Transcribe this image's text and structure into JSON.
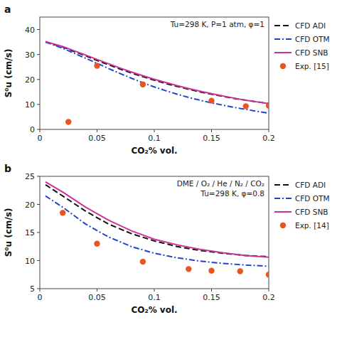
{
  "chart_data": [
    {
      "type": "line",
      "title": "Tu=298 K, P=1 atm, φ=1",
      "x_label": "CO₂% vol.",
      "y_label": "S⁰u (cm/s)",
      "annotations": [
        "a"
      ],
      "xlim": [
        0,
        0.2
      ],
      "ylim": [
        0,
        45
      ],
      "xticks": [
        0,
        0.05,
        0.1,
        0.15,
        0.2
      ],
      "yticks": [
        0,
        10,
        20,
        30,
        40
      ],
      "grid": false,
      "legend": "right",
      "series": [
        {
          "name": "CFD ADI",
          "color": "#111111",
          "line_style": "dashed",
          "x": [
            0.005,
            0.02,
            0.03,
            0.04,
            0.05,
            0.06,
            0.07,
            0.08,
            0.09,
            0.1,
            0.11,
            0.12,
            0.13,
            0.14,
            0.15,
            0.16,
            0.17,
            0.18,
            0.19,
            0.2
          ],
          "values": [
            35.0,
            33.0,
            31.2,
            29.5,
            27.6,
            25.9,
            24.2,
            22.6,
            21.1,
            19.7,
            18.4,
            17.2,
            16.1,
            15.0,
            14.1,
            13.2,
            12.4,
            11.7,
            11.0,
            10.4
          ]
        },
        {
          "name": "CFD OTM",
          "color": "#2244cc",
          "line_style": "dashdot",
          "x": [
            0.005,
            0.02,
            0.03,
            0.04,
            0.05,
            0.06,
            0.07,
            0.08,
            0.09,
            0.1,
            0.11,
            0.12,
            0.13,
            0.14,
            0.15,
            0.16,
            0.17,
            0.18,
            0.19,
            0.2
          ],
          "values": [
            35.0,
            32.5,
            30.5,
            28.5,
            26.5,
            24.4,
            22.4,
            20.5,
            18.7,
            17.0,
            15.5,
            14.1,
            12.8,
            11.7,
            10.6,
            9.7,
            8.8,
            8.0,
            7.2,
            6.5
          ]
        },
        {
          "name": "CFD SNB",
          "color": "#cc3399",
          "line_style": "solid",
          "x": [
            0.005,
            0.02,
            0.03,
            0.04,
            0.05,
            0.06,
            0.07,
            0.08,
            0.09,
            0.1,
            0.11,
            0.12,
            0.13,
            0.14,
            0.15,
            0.16,
            0.17,
            0.18,
            0.19,
            0.2
          ],
          "values": [
            35.2,
            33.2,
            31.5,
            29.8,
            28.0,
            26.3,
            24.6,
            23.0,
            21.5,
            20.1,
            18.8,
            17.5,
            16.4,
            15.3,
            14.3,
            13.4,
            12.5,
            11.7,
            11.0,
            10.3
          ]
        },
        {
          "name": "Exp. [15]",
          "type": "scatter",
          "color": "#e85520",
          "marker": "circle",
          "x": [
            0.025,
            0.05,
            0.09,
            0.15,
            0.18,
            0.2
          ],
          "values": [
            3.0,
            25.5,
            18.0,
            11.5,
            9.3,
            9.5
          ]
        }
      ]
    },
    {
      "type": "line",
      "title": "DME / O₂ / He / N₂ / CO₂\nTu=298 K, φ=0.8",
      "x_label": "CO₂% vol.",
      "y_label": "S⁰u (cm/s)",
      "annotations": [
        "b"
      ],
      "xlim": [
        0,
        0.2
      ],
      "ylim": [
        5,
        25
      ],
      "xticks": [
        0,
        0.05,
        0.1,
        0.15,
        0.2
      ],
      "yticks": [
        5,
        10,
        15,
        20,
        25
      ],
      "grid": false,
      "legend": "right",
      "series": [
        {
          "name": "CFD ADI",
          "color": "#111111",
          "line_style": "dashed",
          "x": [
            0.005,
            0.02,
            0.04,
            0.06,
            0.08,
            0.1,
            0.12,
            0.14,
            0.16,
            0.18,
            0.2
          ],
          "values": [
            23.5,
            21.5,
            18.8,
            16.5,
            14.8,
            13.5,
            12.5,
            11.8,
            11.3,
            10.9,
            10.7
          ]
        },
        {
          "name": "CFD OTM",
          "color": "#2244cc",
          "line_style": "dashdot",
          "x": [
            0.005,
            0.02,
            0.04,
            0.06,
            0.08,
            0.1,
            0.12,
            0.14,
            0.16,
            0.18,
            0.2
          ],
          "values": [
            21.5,
            19.5,
            16.5,
            14.2,
            12.5,
            11.3,
            10.5,
            9.9,
            9.5,
            9.2,
            9.0
          ]
        },
        {
          "name": "CFD SNB",
          "color": "#cc3399",
          "line_style": "solid",
          "x": [
            0.005,
            0.02,
            0.04,
            0.06,
            0.08,
            0.1,
            0.12,
            0.14,
            0.16,
            0.18,
            0.2
          ],
          "values": [
            24.0,
            22.2,
            19.5,
            17.2,
            15.3,
            13.8,
            12.8,
            12.0,
            11.4,
            10.9,
            10.6
          ]
        },
        {
          "name": "Exp. [14]",
          "type": "scatter",
          "color": "#e85520",
          "marker": "circle",
          "x": [
            0.02,
            0.05,
            0.09,
            0.13,
            0.15,
            0.175,
            0.2
          ],
          "values": [
            18.5,
            13.0,
            9.8,
            8.5,
            8.2,
            8.1,
            7.5
          ]
        }
      ]
    }
  ]
}
